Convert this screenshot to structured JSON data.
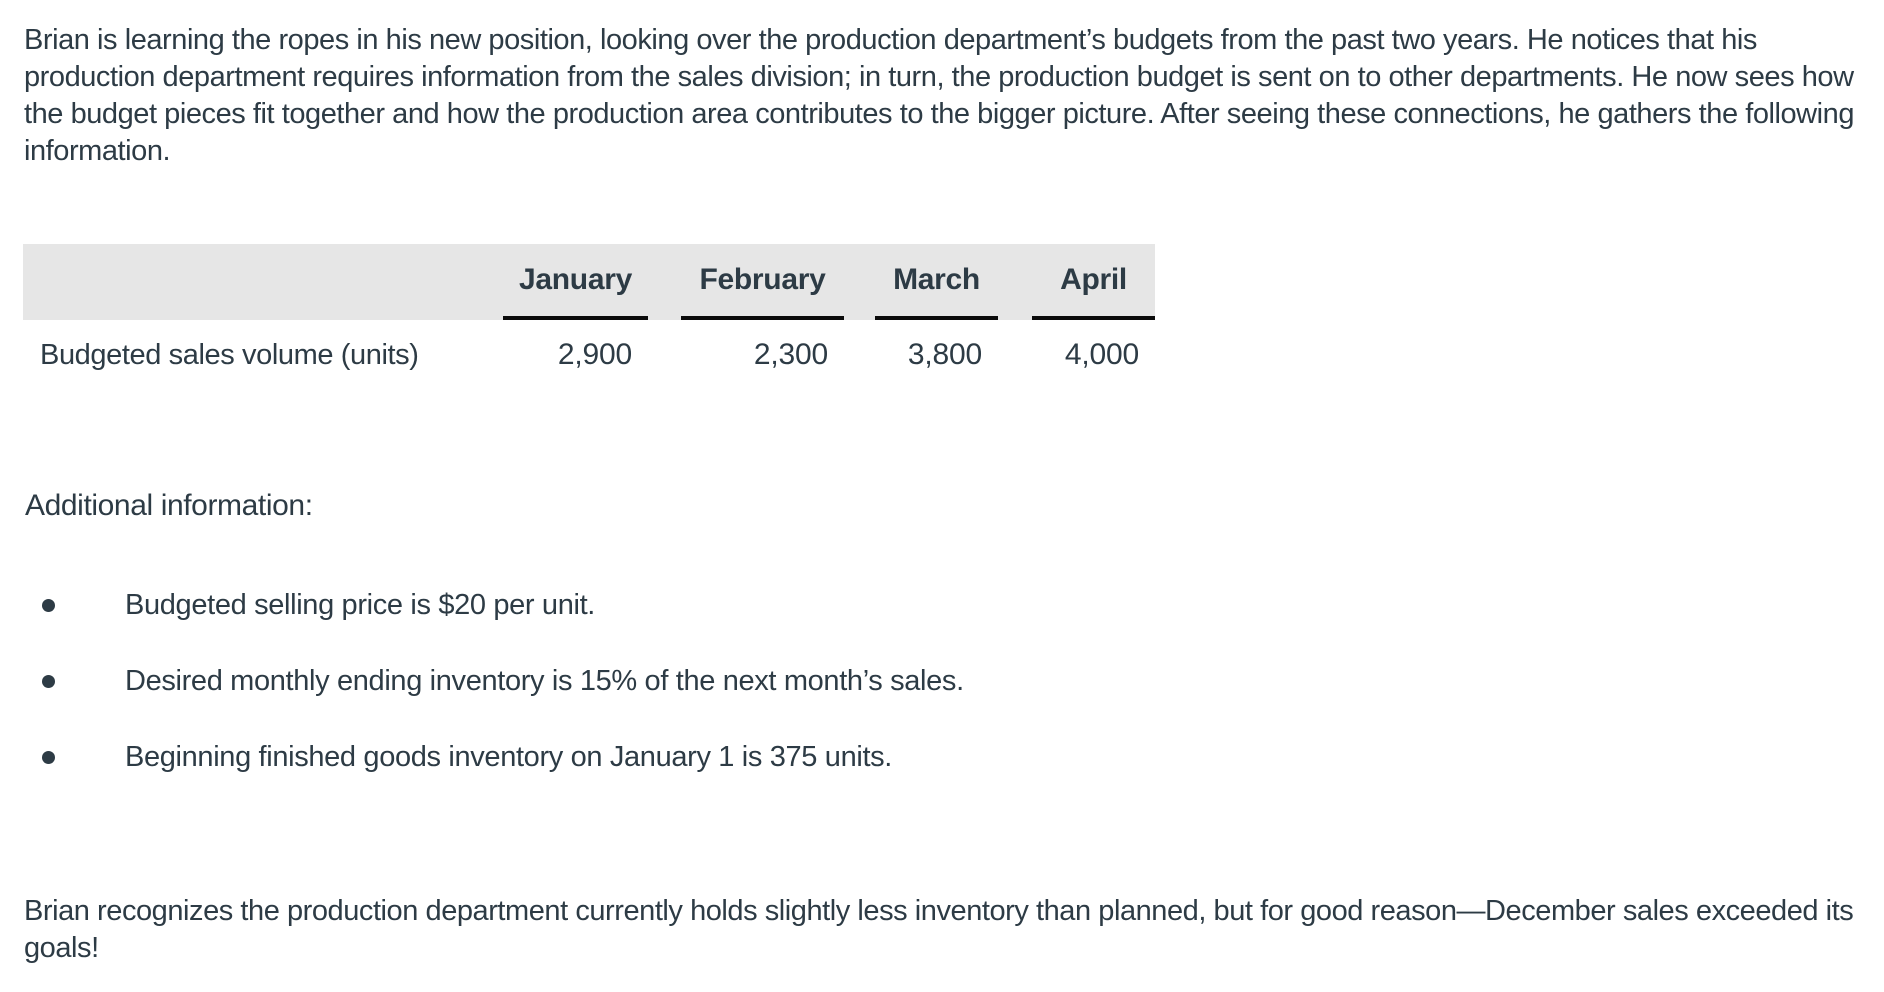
{
  "page": {
    "intro_paragraph": "Brian is learning the ropes in his new position, looking over the production department’s budgets from the past two years. He notices that his production department requires information from the sales division; in turn, the production budget is sent on to other departments. He now sees how the budget pieces fit together and how the production area contributes to the bigger picture. After seeing these connections, he gathers the following information.",
    "additional_info_label": "Additional information:",
    "bullets": [
      "Budgeted selling price is $20 per unit.",
      "Desired monthly ending inventory is 15% of the next month’s sales.",
      "Beginning finished goods inventory on January 1 is 375 units."
    ],
    "closing_paragraph": "Brian recognizes the production department currently holds slightly less inventory than planned, but for good reason—December sales exceeded its goals!"
  },
  "table": {
    "columns": [
      "January",
      "February",
      "March",
      "April"
    ],
    "row_label": "Budgeted sales volume (units)",
    "values": [
      "2,900",
      "2,300",
      "3,800",
      "4,000"
    ]
  },
  "colors": {
    "text": "#2D3B45",
    "table_header_bg": "#E6E6E6",
    "column_underline": "#0B0B0B",
    "background": "#FFFFFF"
  }
}
